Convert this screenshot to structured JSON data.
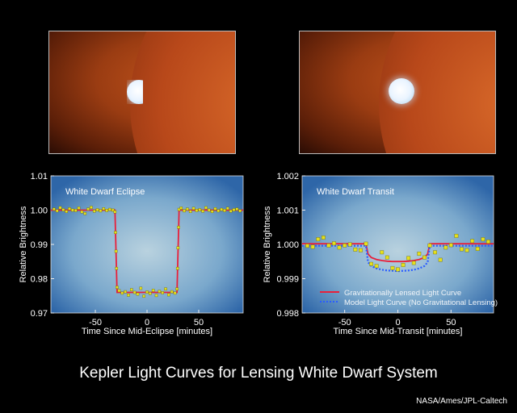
{
  "title": "Kepler Light Curves for Lensing White Dwarf System",
  "credit": "NASA/Ames/JPL-Caltech",
  "colors": {
    "fit": "#e8203a",
    "model": "#2a5cff",
    "points": "#e6e01a",
    "panel": "#5a90c0"
  },
  "chart_data": [
    {
      "type": "scatter",
      "title": "White Dwarf Eclipse",
      "xlabel": "Time Since Mid-Eclipse [minutes]",
      "ylabel": "Relative Brightness",
      "xlim": [
        -93,
        93
      ],
      "ylim": [
        0.97,
        1.01
      ],
      "xticks": [
        -50,
        0,
        50
      ],
      "xtick_labels": [
        "-50",
        "0",
        "50"
      ],
      "yticks": [
        0.97,
        0.98,
        0.99,
        1.0,
        1.01
      ],
      "ytick_labels": [
        "0.97",
        "0.98",
        "0.99",
        "1.00",
        "1.01"
      ],
      "fit_curve": {
        "x": [
          -93,
          -31,
          -29,
          29,
          31,
          93
        ],
        "y": [
          1.0,
          1.0,
          0.976,
          0.976,
          1.0,
          1.0
        ]
      },
      "points": {
        "x": [
          -90,
          -87,
          -84,
          -81,
          -78,
          -75,
          -72,
          -69,
          -66,
          -63,
          -60,
          -57,
          -54,
          -51,
          -48,
          -45,
          -42,
          -39,
          -36,
          -33,
          -31,
          -30.5,
          -30,
          -29.5,
          -29,
          -27,
          -24,
          -21,
          -18,
          -15,
          -12,
          -9,
          -6,
          -3,
          0,
          3,
          6,
          9,
          12,
          15,
          18,
          21,
          24,
          27,
          29,
          29.5,
          30,
          30.5,
          31,
          33,
          36,
          39,
          42,
          45,
          48,
          51,
          54,
          57,
          60,
          63,
          66,
          69,
          72,
          75,
          78,
          81,
          84,
          87,
          90
        ],
        "y": [
          1.0003,
          0.9998,
          1.0007,
          1.0001,
          0.9996,
          1.0004,
          1.0,
          0.9999,
          1.0006,
          0.9995,
          0.999,
          1.0003,
          1.0008,
          0.9997,
          1.0001,
          0.9998,
          1.0004,
          0.9999,
          1.0002,
          1.0,
          0.9995,
          0.9935,
          0.988,
          0.983,
          0.9775,
          0.9765,
          0.9758,
          0.9762,
          0.9752,
          0.9768,
          0.976,
          0.9755,
          0.9772,
          0.9749,
          0.9761,
          0.9757,
          0.9766,
          0.9751,
          0.9763,
          0.9759,
          0.977,
          0.9753,
          0.9762,
          0.9758,
          0.977,
          0.983,
          0.989,
          0.995,
          1.0002,
          1.0006,
          0.9998,
          1.0003,
          0.9996,
          1.0005,
          0.9999,
          1.0001,
          0.9997,
          1.0007,
          1.0,
          0.9996,
          1.0004,
          0.9998,
          1.0002,
          0.9999,
          1.0005,
          0.9997,
          1.0001,
          1.0003,
          0.9998
        ]
      }
    },
    {
      "type": "scatter",
      "title": "White Dwarf Transit",
      "xlabel": "Time Since Mid-Transit [minutes]",
      "ylabel": "Relative Brightness",
      "xlim": [
        -90,
        90
      ],
      "ylim": [
        0.998,
        1.002
      ],
      "xticks": [
        -50,
        0,
        50
      ],
      "xtick_labels": [
        "-50",
        "0",
        "50"
      ],
      "yticks": [
        0.998,
        0.999,
        1.0,
        1.001,
        1.002
      ],
      "ytick_labels": [
        "0.998",
        "0.999",
        "1.000",
        "1.001",
        "1.002"
      ],
      "legend": {
        "position": "bottom",
        "entries": [
          "Gravitationally Lensed Light Curve",
          "Model Light Curve (No Gravitational Lensing)"
        ]
      },
      "series": [
        {
          "name": "Gravitationally Lensed Light Curve",
          "style": "solid",
          "x": [
            -90,
            -30,
            -28,
            -25,
            -20,
            -15,
            -10,
            -5,
            0,
            5,
            10,
            15,
            20,
            25,
            28,
            30,
            90
          ],
          "y": [
            1.00002,
            1.00002,
            0.99972,
            0.99962,
            0.99956,
            0.99953,
            0.99951,
            0.9995,
            0.9995,
            0.9995,
            0.99951,
            0.99953,
            0.99956,
            0.99962,
            0.99972,
            1.00002,
            1.00002
          ]
        },
        {
          "name": "Model Light Curve (No Gravitational Lensing)",
          "style": "dotted",
          "x": [
            -90,
            -30,
            -28,
            -25,
            -20,
            -15,
            -10,
            -5,
            0,
            5,
            10,
            15,
            20,
            25,
            28,
            30,
            90
          ],
          "y": [
            0.99996,
            0.99996,
            0.99948,
            0.99937,
            0.9993,
            0.99926,
            0.99924,
            0.99923,
            0.99922,
            0.99923,
            0.99924,
            0.99926,
            0.9993,
            0.99937,
            0.99948,
            0.99996,
            0.99996
          ]
        }
      ],
      "points": {
        "x": [
          -85,
          -80,
          -75,
          -70,
          -65,
          -60,
          -55,
          -50,
          -45,
          -40,
          -35,
          -30,
          -25,
          -20,
          -15,
          -10,
          -5,
          0,
          5,
          10,
          15,
          20,
          25,
          30,
          35,
          40,
          45,
          50,
          55,
          60,
          65,
          70,
          75,
          80,
          85
        ],
        "y": [
          0.99996,
          0.99993,
          1.00015,
          1.0002,
          0.99997,
          1.00003,
          0.99991,
          0.99997,
          1.0,
          0.99985,
          0.99983,
          1.00002,
          0.99943,
          0.99937,
          0.99977,
          0.99962,
          0.99931,
          0.99927,
          0.9994,
          0.9996,
          0.99946,
          0.99973,
          0.99962,
          0.99997,
          0.99977,
          0.99955,
          0.99991,
          0.99998,
          1.00025,
          0.99986,
          0.99983,
          1.0001,
          0.99987,
          1.00015,
          1.00008
        ]
      }
    }
  ]
}
